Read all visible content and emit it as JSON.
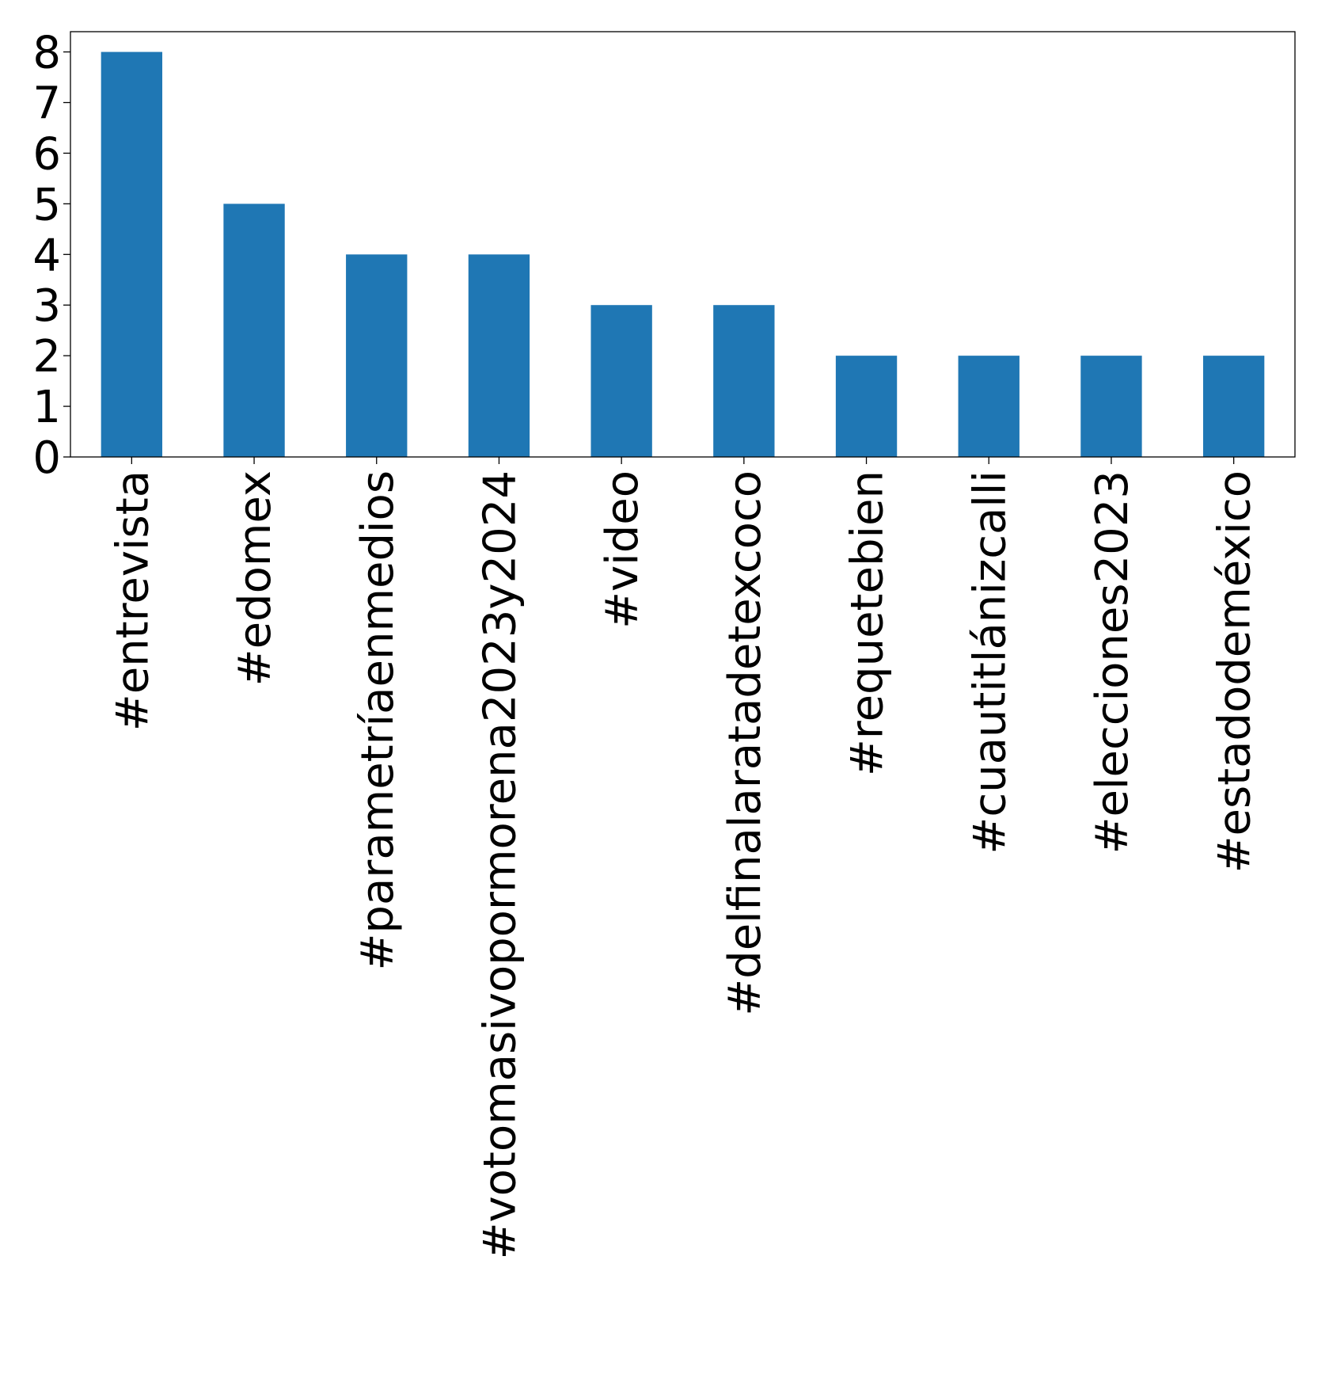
{
  "chart_data": {
    "type": "bar",
    "title": "",
    "xlabel": "",
    "ylabel": "",
    "categories": [
      "#entrevista",
      "#edomex",
      "#parametríaenmedios",
      "#votomasivopormorena2023y2024",
      "#video",
      "#delfinalaratadetexcoco",
      "#requetebien",
      "#cuautitlánizcalli",
      "#elecciones2023",
      "#estadodeméxico"
    ],
    "values": [
      8,
      5,
      4,
      4,
      3,
      3,
      2,
      2,
      2,
      2
    ],
    "ylim": [
      0,
      8.4
    ],
    "yticks": [
      0,
      1,
      2,
      3,
      4,
      5,
      6,
      7,
      8
    ],
    "bar_color": "#1f77b4",
    "grid": false,
    "legend": "none"
  }
}
